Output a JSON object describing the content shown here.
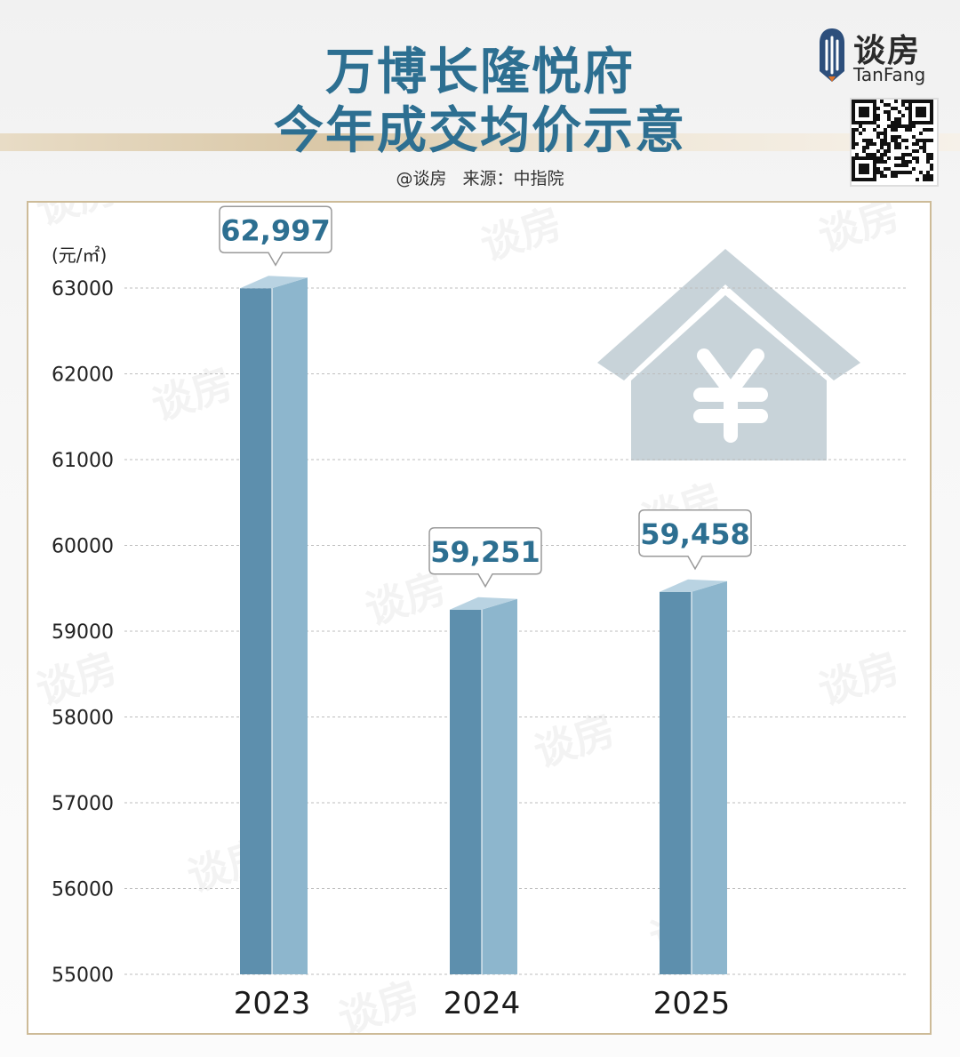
{
  "header": {
    "title_line1": "万博长隆悦府",
    "title_line2": "今年成交均价示意",
    "credit": "@谈房",
    "source": "来源：中指院"
  },
  "logo": {
    "cn": "谈房",
    "en": "TanFang"
  },
  "colors": {
    "title": "#2d6f91",
    "bar_front": "#5d8fad",
    "bar_side": "#8db6cd",
    "bar_top": "#b9d3e2",
    "label_text": "#2d6f91",
    "frame": "#cdbb98",
    "icon_gray": "#c8d3d9"
  },
  "icon": "house-yen-icon",
  "chart_data": {
    "type": "bar",
    "title": "万博长隆悦府 今年成交均价示意",
    "ylabel": "(元/㎡)",
    "categories": [
      "2023",
      "2024",
      "2025"
    ],
    "values": [
      62997,
      59251,
      59458
    ],
    "value_labels": [
      "62,997",
      "59,251",
      "59,458"
    ],
    "ylim": [
      55000,
      63000
    ],
    "yticks": [
      "63000",
      "62000",
      "61000",
      "60000",
      "59000",
      "58000",
      "57000",
      "56000",
      "55000"
    ],
    "grid": true
  }
}
